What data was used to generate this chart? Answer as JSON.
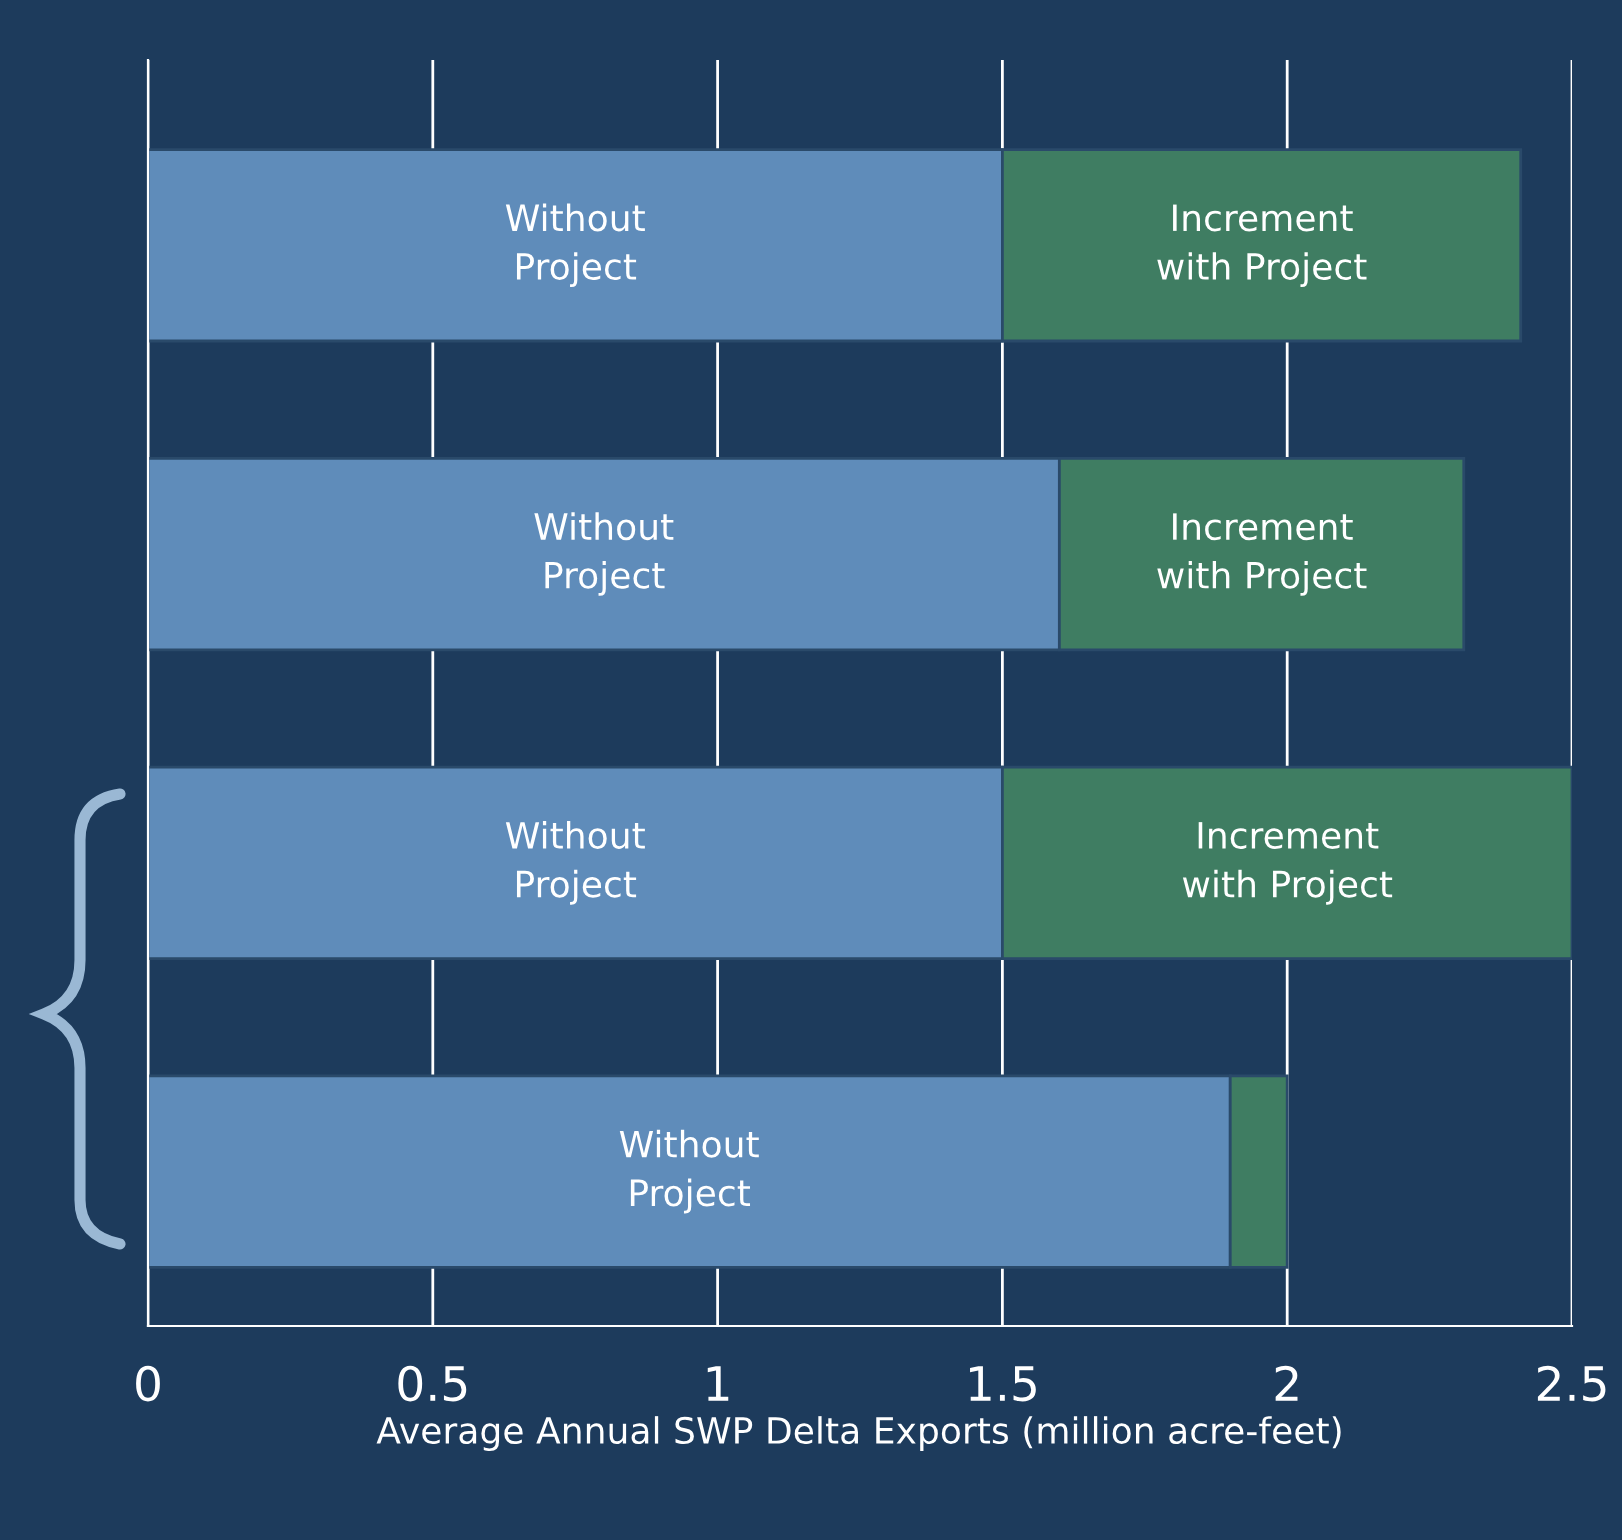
{
  "chart_data": {
    "type": "bar",
    "orientation": "horizontal",
    "stacked": true,
    "categories": [
      null,
      null,
      null,
      null
    ],
    "series": [
      {
        "name": "Without\nProject",
        "color": "#5f8cba",
        "values": [
          1.5,
          1.6,
          1.5,
          1.9
        ]
      },
      {
        "name": "Increment\nwith Project",
        "color": "#3f7d62",
        "values": [
          0.91,
          0.71,
          1.0,
          0.1
        ]
      }
    ],
    "xlabel": "Average Annual SWP Delta Exports (million acre-feet)",
    "xlim": [
      0,
      2.5
    ],
    "xticks": [
      0,
      0.5,
      1,
      1.5,
      2,
      2.5
    ],
    "grid": "x",
    "legend": false
  }
}
